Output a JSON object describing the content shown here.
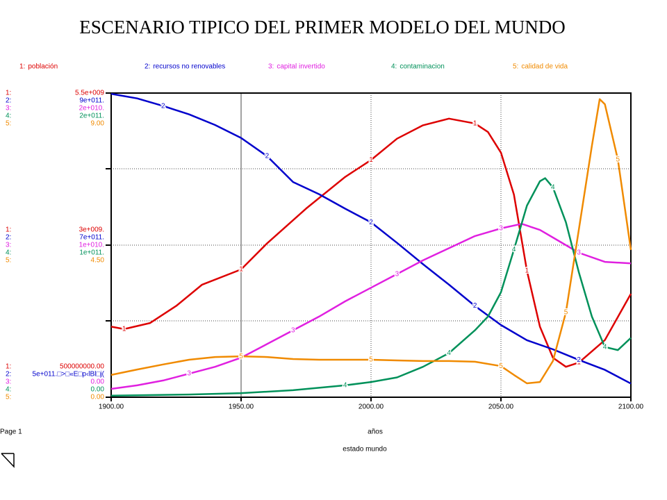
{
  "chart_data": {
    "type": "line",
    "title": "ESCENARIO TIPICO DEL PRIMER MODELO DEL MUNDO",
    "x_label": "años",
    "page_label": "Page 1",
    "footer": "estado mundo",
    "xlim": [
      1900,
      2100
    ],
    "xticks": [
      {
        "value": 1900,
        "label": "1900.00"
      },
      {
        "value": 1950,
        "label": "1950.00"
      },
      {
        "value": 2000,
        "label": "2000.00"
      },
      {
        "value": 2050,
        "label": "2050.00"
      },
      {
        "value": 2100,
        "label": "2100.00"
      }
    ],
    "grid": true,
    "series": [
      {
        "key": "1:",
        "marker": "1",
        "name": "población",
        "color": "#dd0000",
        "ylim": [
          500000000,
          5500000000
        ],
        "yticks": [
          {
            "value": 500000000,
            "label": "500000000.00"
          },
          {
            "value": 3000000000,
            "label": "3e+009."
          },
          {
            "value": 5500000000,
            "label": "5.5e+009"
          }
        ],
        "x": [
          1900,
          1905,
          1915,
          1925,
          1935,
          1950,
          1960,
          1975,
          1990,
          2000,
          2010,
          2020,
          2030,
          2040,
          2045,
          2050,
          2055,
          2060,
          2065,
          2070,
          2075,
          2080,
          2090,
          2100
        ],
        "values": [
          1660000000,
          1620000000,
          1720000000,
          2000000000,
          2350000000,
          2600000000,
          3030000000,
          3600000000,
          4120000000,
          4400000000,
          4750000000,
          4970000000,
          5080000000,
          5000000000,
          4860000000,
          4520000000,
          3830000000,
          2580000000,
          1660000000,
          1150000000,
          1000000000,
          1070000000,
          1440000000,
          2200000000
        ]
      },
      {
        "key": "2:",
        "marker": "2",
        "name": "recursos no renovables",
        "color": "#0000cc",
        "ylim": [
          500000000000,
          900000000000
        ],
        "yticks": [
          {
            "value": 500000000000,
            "label": "5e+011.□>□«E□p‹lBl□j("
          },
          {
            "value": 700000000000,
            "label": "7e+011."
          },
          {
            "value": 900000000000,
            "label": "9e+011."
          }
        ],
        "x": [
          1900,
          1910,
          1920,
          1930,
          1940,
          1950,
          1960,
          1970,
          1980,
          1990,
          2000,
          2010,
          2020,
          2030,
          2040,
          2050,
          2060,
          2070,
          2080,
          2090,
          2100
        ],
        "values": [
          899000000000,
          893000000000,
          883000000000,
          872000000000,
          858000000000,
          841000000000,
          817000000000,
          783000000000,
          767000000000,
          748000000000,
          730000000000,
          703000000000,
          675000000000,
          648000000000,
          620000000000,
          595000000000,
          575000000000,
          563000000000,
          549000000000,
          536000000000,
          518000000000
        ]
      },
      {
        "key": "3:",
        "marker": "3",
        "name": "capital invertido",
        "color": "#e020e0",
        "ylim": [
          0,
          20000000000
        ],
        "yticks": [
          {
            "value": 0,
            "label": "0.00"
          },
          {
            "value": 10000000000,
            "label": "1e+010."
          },
          {
            "value": 20000000000,
            "label": "2e+010."
          }
        ],
        "x": [
          1900,
          1910,
          1920,
          1930,
          1940,
          1950,
          1960,
          1970,
          1980,
          1990,
          2000,
          2010,
          2020,
          2030,
          2040,
          2050,
          2058,
          2065,
          2070,
          2080,
          2090,
          2100
        ],
        "values": [
          550000000,
          780000000,
          1100000000,
          1550000000,
          2000000000,
          2600000000,
          3500000000,
          4400000000,
          5300000000,
          6300000000,
          7200000000,
          8100000000,
          9000000000,
          9800000000,
          10600000000,
          11100000000,
          11400000000,
          11000000000,
          10500000000,
          9500000000,
          8900000000,
          8800000000
        ]
      },
      {
        "key": "4:",
        "marker": "4",
        "name": "contaminacion",
        "color": "#00915a",
        "ylim": [
          0,
          200000000000
        ],
        "yticks": [
          {
            "value": 0,
            "label": "0.00"
          },
          {
            "value": 100000000000,
            "label": "1e+011."
          },
          {
            "value": 200000000000,
            "label": "2e+011."
          }
        ],
        "x": [
          1900,
          1930,
          1950,
          1970,
          1990,
          2000,
          2010,
          2020,
          2030,
          2040,
          2045,
          2050,
          2055,
          2060,
          2065,
          2067,
          2070,
          2075,
          2080,
          2085,
          2090,
          2095,
          2100
        ],
        "values": [
          1000000000,
          1800000000,
          2700000000,
          4600000000,
          7800000000,
          10000000000,
          13000000000,
          20000000000,
          29000000000,
          44000000000,
          53000000000,
          69000000000,
          97000000000,
          126000000000,
          142000000000,
          144000000000,
          138000000000,
          115000000000,
          82000000000,
          53000000000,
          33000000000,
          31000000000,
          39000000000
        ]
      },
      {
        "key": "5:",
        "marker": "5",
        "name": "calidad de vida",
        "color": "#f08a00",
        "ylim": [
          0,
          9
        ],
        "yticks": [
          {
            "value": 0,
            "label": "0.00"
          },
          {
            "value": 4.5,
            "label": "4.50"
          },
          {
            "value": 9,
            "label": "9.00"
          }
        ],
        "x": [
          1900,
          1910,
          1920,
          1930,
          1940,
          1950,
          1960,
          1970,
          1980,
          1990,
          2000,
          2010,
          2020,
          2030,
          2040,
          2050,
          2055,
          2060,
          2065,
          2070,
          2075,
          2080,
          2085,
          2088,
          2090,
          2095,
          2100
        ],
        "values": [
          0.66,
          0.82,
          0.97,
          1.11,
          1.19,
          1.21,
          1.19,
          1.13,
          1.11,
          1.11,
          1.11,
          1.09,
          1.07,
          1.07,
          1.05,
          0.92,
          0.66,
          0.41,
          0.45,
          1.07,
          2.51,
          4.97,
          7.44,
          8.82,
          8.67,
          7.03,
          4.36
        ]
      }
    ]
  }
}
